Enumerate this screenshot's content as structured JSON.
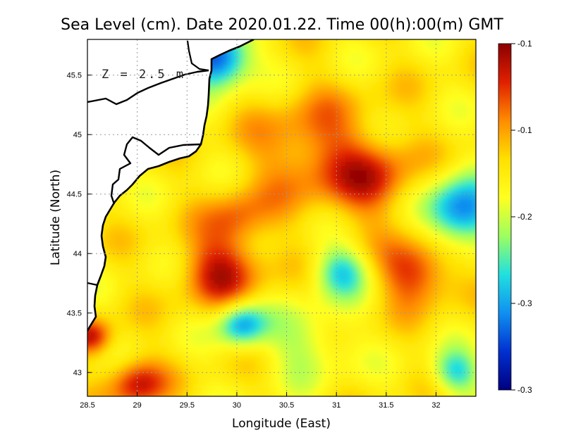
{
  "chart_data": {
    "type": "heatmap",
    "title": "Sea Level (cm). Date 2020.01.22. Time 00(h):00(m) GMT",
    "xlabel": "Longitude (East)",
    "ylabel": "Latitude (North)",
    "xlim": [
      28.5,
      32.4
    ],
    "ylim": [
      42.8,
      45.8
    ],
    "x_ticks": [
      28.5,
      29,
      29.5,
      30,
      30.5,
      31,
      31.5,
      32
    ],
    "x_tick_labels": [
      "28.5",
      "29",
      "29.5",
      "30",
      "30.5",
      "31",
      "31.5",
      "32"
    ],
    "y_ticks": [
      43,
      43.5,
      44,
      44.5,
      45,
      45.5
    ],
    "y_tick_labels": [
      "43",
      "43.5",
      "44",
      "44.5",
      "45",
      "45.5"
    ],
    "grid": true,
    "annotation": "Z = 2.5 m",
    "colorbar": {
      "labels": [
        "-0.1",
        "-0.1",
        "-0.2",
        "-0.3",
        "-0.3"
      ],
      "colors": [
        "#8b0000",
        "#e02000",
        "#ff8c00",
        "#ffe000",
        "#ffff20",
        "#9cff60",
        "#20e0e0",
        "#1090f0",
        "#0030d0",
        "#000080"
      ]
    },
    "field_features": [
      {
        "lon": 29.85,
        "lat": 43.86,
        "value": -0.1,
        "radius": 0.5
      },
      {
        "lon": 31.8,
        "lat": 43.85,
        "value": -0.1,
        "radius": 0.45
      },
      {
        "lon": 30.8,
        "lat": 44.85,
        "value": -0.12,
        "radius": 0.8
      },
      {
        "lon": 31.4,
        "lat": 44.6,
        "value": -0.12,
        "radius": 0.5
      },
      {
        "lon": 32.25,
        "lat": 44.35,
        "value": -0.28,
        "radius": 0.45
      },
      {
        "lon": 31.05,
        "lat": 43.85,
        "value": -0.24,
        "radius": 0.35
      },
      {
        "lon": 30.05,
        "lat": 43.4,
        "value": -0.26,
        "radius": 0.3
      },
      {
        "lon": 30.7,
        "lat": 43.25,
        "value": -0.21,
        "radius": 0.5
      },
      {
        "lon": 29.0,
        "lat": 42.9,
        "value": -0.1,
        "radius": 0.35
      },
      {
        "lon": 28.55,
        "lat": 43.3,
        "value": -0.1,
        "radius": 0.25
      },
      {
        "lon": 29.8,
        "lat": 45.65,
        "value": -0.3,
        "radius": 0.4
      },
      {
        "lon": 32.2,
        "lat": 43.0,
        "value": -0.24,
        "radius": 0.3
      },
      {
        "lon": 30.0,
        "lat": 44.3,
        "value": -0.13,
        "radius": 0.4
      }
    ],
    "background_value": -0.17
  }
}
